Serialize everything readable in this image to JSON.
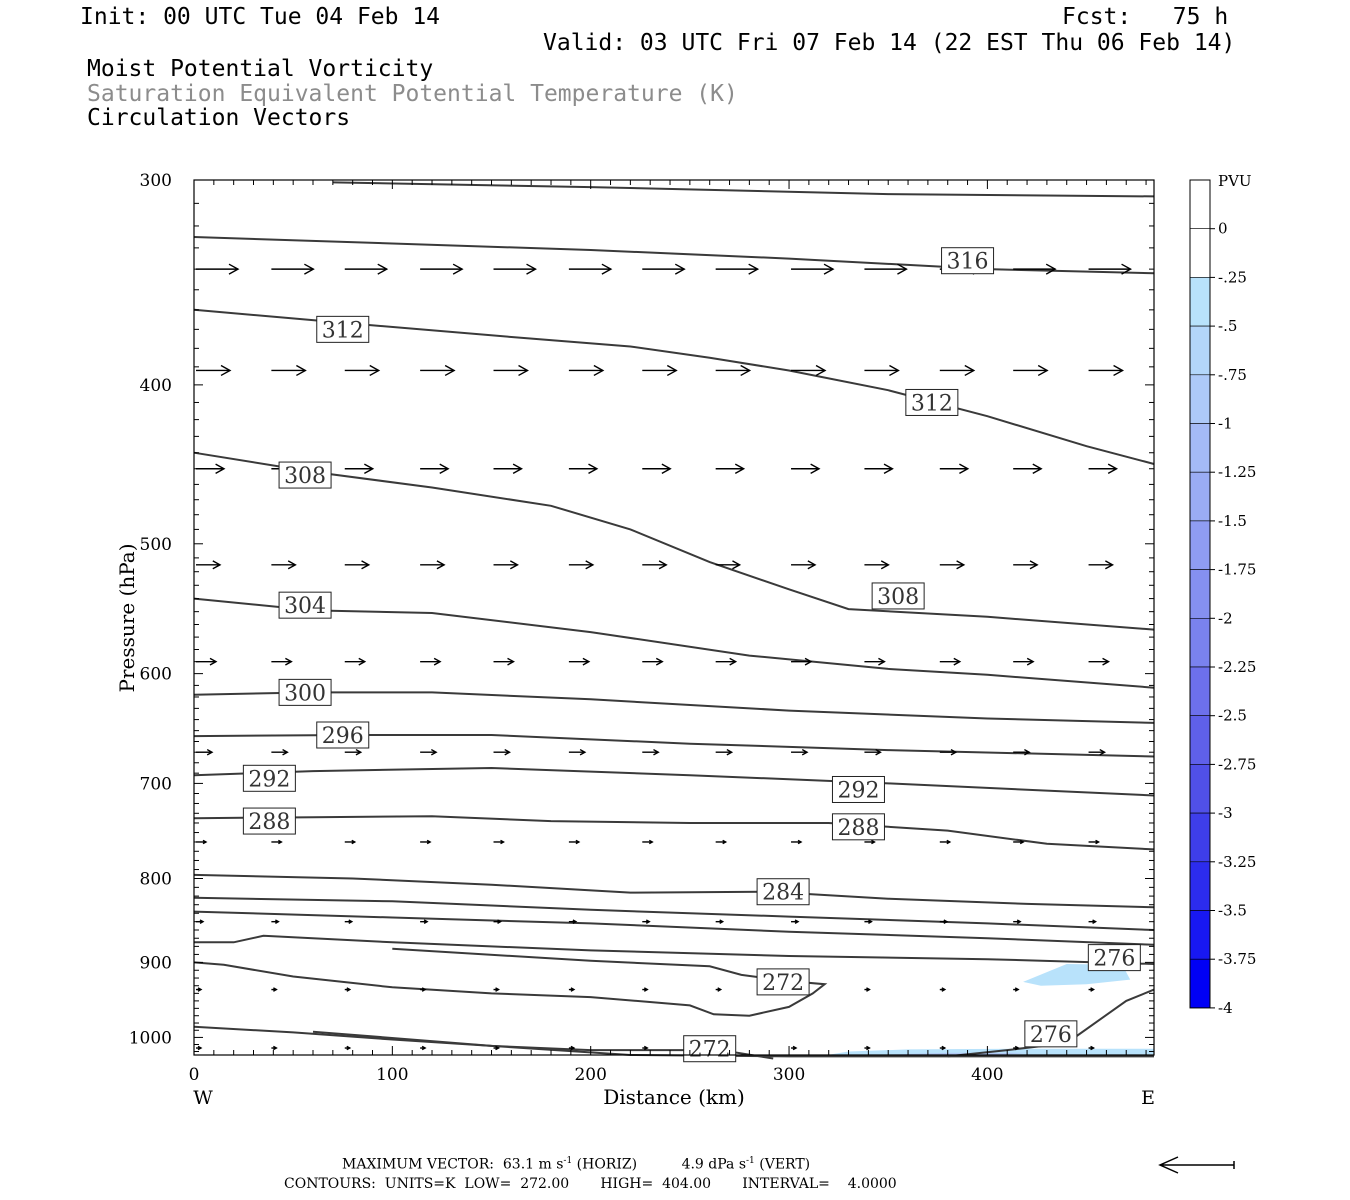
{
  "header": {
    "init": "Init: 00 UTC Tue 04 Feb 14",
    "fcst": "Fcst:   75 h",
    "valid": "Valid: 03 UTC Fri 07 Feb 14 (22 EST Thu 06 Feb 14)",
    "fields": [
      "Moist Potential Vorticity",
      "Saturation Equivalent Potential Temperature (K)",
      "Circulation Vectors"
    ]
  },
  "footer": {
    "line1_prefix": "MAXIMUM VECTOR:  63.1 m s",
    "line1_exp1": "-1",
    "line1_mid": " (HORIZ)          4.9 dPa s",
    "line1_exp2": "-1",
    "line1_suffix": " (VERT)",
    "line2": "CONTOURS:  UNITS=K  LOW=  272.00       HIGH=  404.00       INTERVAL=    4.0000"
  },
  "colors": {
    "contour": "#3a3a3a",
    "vector": "#000000",
    "fill_light": "#b8e2fb",
    "fill_mid": "#b0c8f4"
  },
  "chart_data": {
    "type": "contour-cross-section",
    "xlabel": "Distance (km)",
    "ylabel": "Pressure (hPa)",
    "xlim": [
      0,
      484
    ],
    "ylim": [
      300,
      1025
    ],
    "y_log": true,
    "x_ticks": [
      "0",
      "100",
      "200",
      "300",
      "400"
    ],
    "x_tick_values": [
      0,
      100,
      200,
      300,
      400
    ],
    "y_ticks": [
      "300",
      "400",
      "500",
      "600",
      "700",
      "800",
      "900",
      "1000"
    ],
    "y_tick_values": [
      300,
      400,
      500,
      600,
      700,
      800,
      900,
      1000
    ],
    "west_label": "W",
    "east_label": "E",
    "colorbar": {
      "unit": "PVU",
      "labels": [
        "0",
        "-.25",
        "-.5",
        "-.75",
        "-1",
        "-1.25",
        "-1.5",
        "-1.75",
        "-2",
        "-2.25",
        "-2.5",
        "-2.75",
        "-3",
        "-3.25",
        "-3.5",
        "-3.75",
        "-4"
      ],
      "colors": [
        "#ffffff",
        "#ffffff",
        "#b8e2fb",
        "#b3d6fa",
        "#adc9f8",
        "#a4baf6",
        "#9aacf4",
        "#8f9cf2",
        "#8590f0",
        "#7a82ee",
        "#6d70ec",
        "#5f60ea",
        "#5050e8",
        "#3e3eea",
        "#2c2cee",
        "#1818f2",
        "#0000f5"
      ]
    },
    "contours": [
      {
        "label": "",
        "points": [
          [
            70,
            301
          ],
          [
            200,
            303
          ],
          [
            350,
            306
          ],
          [
            484,
            307
          ]
        ]
      },
      {
        "label": "316",
        "label_at": [
          390,
          336
        ],
        "points": [
          [
            0,
            325
          ],
          [
            100,
            328
          ],
          [
            200,
            331
          ],
          [
            300,
            335
          ],
          [
            400,
            340
          ],
          [
            484,
            342
          ]
        ]
      },
      {
        "label": "312",
        "label_at": [
          75,
          370
        ],
        "points": [
          [
            0,
            360
          ],
          [
            80,
            367
          ],
          [
            160,
            374
          ],
          [
            220,
            379
          ],
          [
            260,
            385
          ],
          [
            300,
            392
          ],
          [
            350,
            403
          ],
          [
            400,
            418
          ],
          [
            450,
            436
          ],
          [
            484,
            447
          ]
        ]
      },
      {
        "label": "312",
        "label_at": [
          372,
          410
        ],
        "points": []
      },
      {
        "label": "308",
        "label_at": [
          56,
          454
        ],
        "points": [
          [
            0,
            440
          ],
          [
            60,
            452
          ],
          [
            120,
            462
          ],
          [
            180,
            474
          ],
          [
            220,
            490
          ],
          [
            260,
            513
          ],
          [
            300,
            533
          ],
          [
            330,
            548
          ],
          [
            400,
            554
          ],
          [
            484,
            564
          ]
        ]
      },
      {
        "label": "308",
        "label_at": [
          355,
          538
        ],
        "points": []
      },
      {
        "label": "304",
        "label_at": [
          56,
          545
        ],
        "points": [
          [
            0,
            540
          ],
          [
            60,
            549
          ],
          [
            120,
            551
          ],
          [
            200,
            566
          ],
          [
            280,
            585
          ],
          [
            350,
            596
          ],
          [
            400,
            601
          ],
          [
            484,
            612
          ]
        ]
      },
      {
        "label": "300",
        "label_at": [
          56,
          616
        ],
        "points": [
          [
            0,
            618
          ],
          [
            60,
            616
          ],
          [
            120,
            616
          ],
          [
            200,
            622
          ],
          [
            300,
            632
          ],
          [
            400,
            639
          ],
          [
            484,
            643
          ]
        ]
      },
      {
        "label": "296",
        "label_at": [
          75,
          654
        ],
        "points": [
          [
            0,
            655
          ],
          [
            80,
            654
          ],
          [
            150,
            654
          ],
          [
            250,
            662
          ],
          [
            350,
            668
          ],
          [
            484,
            674
          ]
        ]
      },
      {
        "label": "292",
        "label_at": [
          38,
          695
        ],
        "points": [
          [
            0,
            692
          ],
          [
            60,
            688
          ],
          [
            150,
            685
          ],
          [
            250,
            692
          ],
          [
            350,
            700
          ],
          [
            484,
            712
          ]
        ]
      },
      {
        "label": "292",
        "label_at": [
          335,
          706
        ],
        "points": []
      },
      {
        "label": "288",
        "label_at": [
          38,
          738
        ],
        "points": [
          [
            0,
            735
          ],
          [
            60,
            734
          ],
          [
            120,
            733
          ],
          [
            180,
            738
          ],
          [
            250,
            740
          ],
          [
            320,
            740
          ],
          [
            380,
            748
          ],
          [
            430,
            762
          ],
          [
            484,
            768
          ]
        ]
      },
      {
        "label": "288",
        "label_at": [
          335,
          744
        ],
        "points": []
      },
      {
        "label": "284",
        "label_at": [
          297,
          815
        ],
        "points": [
          [
            0,
            796
          ],
          [
            80,
            800
          ],
          [
            150,
            807
          ],
          [
            220,
            816
          ],
          [
            290,
            815
          ],
          [
            350,
            823
          ],
          [
            420,
            829
          ],
          [
            484,
            833
          ]
        ]
      },
      {
        "label": "",
        "points": [
          [
            0,
            822
          ],
          [
            100,
            826
          ],
          [
            200,
            836
          ],
          [
            300,
            844
          ],
          [
            400,
            852
          ],
          [
            484,
            860
          ]
        ]
      },
      {
        "label": "",
        "points": [
          [
            0,
            838
          ],
          [
            100,
            845
          ],
          [
            200,
            852
          ],
          [
            300,
            862
          ],
          [
            400,
            870
          ],
          [
            484,
            878
          ]
        ]
      },
      {
        "label": "276",
        "label_at": [
          464,
          894
        ],
        "points": [
          [
            0,
            875
          ],
          [
            20,
            875
          ],
          [
            35,
            867
          ],
          [
            100,
            875
          ],
          [
            200,
            885
          ],
          [
            300,
            892
          ],
          [
            400,
            896
          ],
          [
            484,
            902
          ]
        ]
      },
      {
        "label": "272",
        "label_at": [
          297,
          925
        ],
        "points": [
          [
            0,
            900
          ],
          [
            15,
            903
          ],
          [
            50,
            918
          ],
          [
            100,
            932
          ],
          [
            150,
            940
          ],
          [
            200,
            945
          ],
          [
            250,
            956
          ],
          [
            262,
            968
          ],
          [
            280,
            970
          ],
          [
            300,
            958
          ],
          [
            312,
            940
          ],
          [
            318,
            928
          ],
          [
            300,
            924
          ],
          [
            276,
            916
          ],
          [
            260,
            905
          ],
          [
            200,
            898
          ],
          [
            100,
            883
          ]
        ]
      },
      {
        "label": "272",
        "label_at": [
          260,
          1016
        ],
        "points": [
          [
            0,
            985
          ],
          [
            50,
            993
          ],
          [
            100,
            1003
          ],
          [
            150,
            1012
          ],
          [
            200,
            1018
          ],
          [
            250,
            1018
          ],
          [
            270,
            1020
          ],
          [
            292,
            1030
          ]
        ]
      },
      {
        "label": "",
        "points": [
          [
            60,
            992
          ],
          [
            150,
            1012
          ],
          [
            220,
            1025
          ],
          [
            300,
            1027
          ],
          [
            484,
            1027
          ]
        ]
      },
      {
        "label": "276",
        "label_at": [
          432,
          995
        ],
        "points": [
          [
            380,
            1027
          ],
          [
            410,
            1018
          ],
          [
            440,
            1008
          ],
          [
            470,
            950
          ],
          [
            484,
            935
          ]
        ]
      }
    ],
    "pv_regions": [
      {
        "level": "-.25 to -.5",
        "points": [
          [
            418,
            925
          ],
          [
            440,
            902
          ],
          [
            468,
            903
          ],
          [
            472,
            922
          ],
          [
            450,
            928
          ],
          [
            427,
            930
          ]
        ]
      },
      {
        "level": "-.25 to -.5",
        "points": [
          [
            315,
            1027
          ],
          [
            330,
            1020
          ],
          [
            360,
            1017
          ],
          [
            420,
            1016
          ],
          [
            484,
            1016
          ],
          [
            484,
            1024
          ],
          [
            400,
            1027
          ]
        ]
      },
      {
        "level": "-.5 to -.75",
        "points": [
          [
            340,
            1025
          ],
          [
            380,
            1022
          ],
          [
            420,
            1022
          ],
          [
            400,
            1026
          ]
        ]
      }
    ],
    "vector_rows": [
      {
        "p": 340,
        "xs": [
          0,
          38,
          75,
          113,
          150,
          188,
          225,
          262,
          300,
          337,
          375,
          412,
          450
        ],
        "len": 42
      },
      {
        "p": 392,
        "xs": [
          0,
          38,
          75,
          113,
          150,
          188,
          225,
          262,
          300,
          337,
          375,
          412,
          450
        ],
        "len": 34
      },
      {
        "p": 450,
        "xs": [
          0,
          38,
          75,
          113,
          150,
          188,
          225,
          262,
          300,
          337,
          375,
          412,
          450
        ],
        "len": 28
      },
      {
        "p": 515,
        "xs": [
          0,
          38,
          75,
          113,
          150,
          188,
          225,
          262,
          300,
          337,
          375,
          412,
          450
        ],
        "len": 24
      },
      {
        "p": 590,
        "xs": [
          0,
          38,
          75,
          113,
          150,
          188,
          225,
          262,
          300,
          337,
          375,
          412,
          450
        ],
        "len": 20
      },
      {
        "p": 670,
        "xs": [
          0,
          38,
          75,
          113,
          150,
          188,
          225,
          262,
          300,
          337,
          375,
          412,
          450
        ],
        "len": 16
      },
      {
        "p": 760,
        "xs": [
          0,
          38,
          75,
          113,
          150,
          188,
          225,
          262,
          300,
          337,
          375,
          412,
          450
        ],
        "len": 10
      },
      {
        "p": 850,
        "xs": [
          0,
          38,
          75,
          113,
          150,
          188,
          225,
          262,
          300,
          337,
          375,
          412,
          450
        ],
        "len": 7
      },
      {
        "p": 935,
        "xs": [
          0,
          38,
          75,
          113,
          150,
          188,
          225,
          262,
          300,
          337,
          375,
          412,
          450
        ],
        "len": 5
      },
      {
        "p": 1015,
        "xs": [
          0,
          38,
          75,
          113,
          150,
          188,
          225,
          262,
          300,
          337,
          375,
          412,
          450
        ],
        "len": 5
      }
    ],
    "reference_vector_direction": "left"
  }
}
